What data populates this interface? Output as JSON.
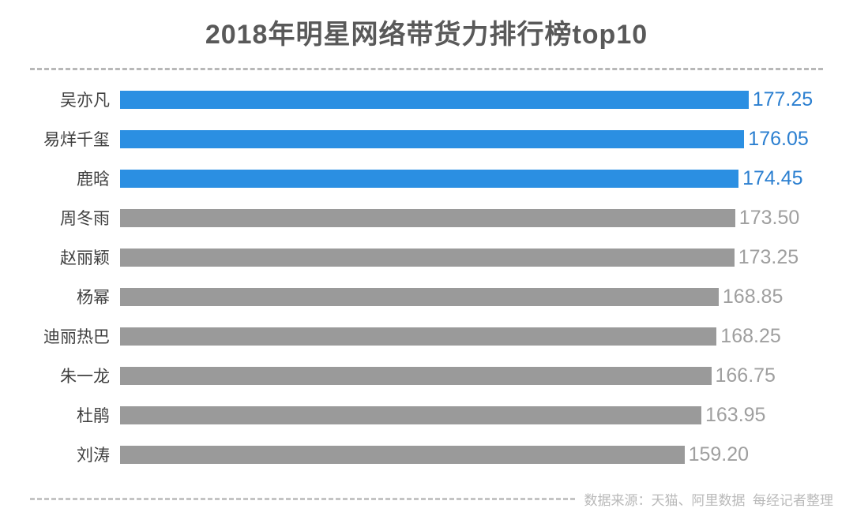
{
  "title": "2018年明星网络带货力排行榜top10",
  "source_note": "数据来源：天猫、阿里数据  每经记者整理",
  "colors": {
    "highlight_bar": "#2b8fe2",
    "highlight_value": "#2b7fd0",
    "normal_bar": "#9a9a9a",
    "normal_value": "#9f9f9f",
    "title_text": "#595959",
    "category_text": "#3f3f3f",
    "dashed_line": "#b8b8b8",
    "source_text": "#b9b9b9"
  },
  "chart_data": {
    "type": "bar",
    "orientation": "horizontal",
    "title": "2018年明星网络带货力排行榜top10",
    "categories": [
      "吴亦凡",
      "易烊千玺",
      "鹿晗",
      "周冬雨",
      "赵丽颖",
      "杨幂",
      "迪丽热巴",
      "朱一龙",
      "杜鹃",
      "刘涛"
    ],
    "values": [
      177.25,
      176.05,
      174.45,
      173.5,
      173.25,
      168.85,
      168.25,
      166.75,
      163.95,
      159.2
    ],
    "value_labels": [
      "177.25",
      "176.05",
      "174.45",
      "173.50",
      "173.25",
      "168.85",
      "168.25",
      "166.75",
      "163.95",
      "159.20"
    ],
    "highlighted": [
      true,
      true,
      true,
      false,
      false,
      false,
      false,
      false,
      false,
      false
    ],
    "xlim": [
      0,
      180
    ],
    "grid": false,
    "legend": false,
    "xlabel": "",
    "ylabel": ""
  }
}
